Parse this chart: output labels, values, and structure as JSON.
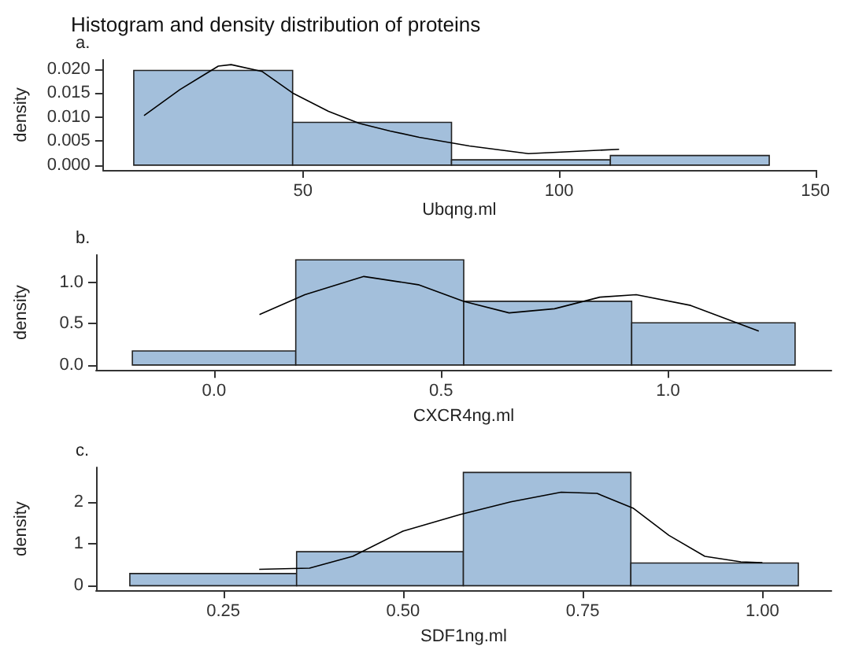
{
  "chart_data": [
    {
      "type": "histogram",
      "title": "Histogram and density distribution of proteins",
      "annotations": [
        "a."
      ],
      "xlabel": "Ubqng.ml",
      "ylabel": "density",
      "color": "#a3bfdb",
      "bins": [
        17,
        48,
        79,
        110,
        141
      ],
      "values": [
        0.0197,
        0.0089,
        0.0011,
        0.002
      ],
      "xlim": [
        11,
        150
      ],
      "ylim": [
        -0.001,
        0.0219
      ],
      "xticks": [
        50,
        100,
        150
      ],
      "yticks": [
        {
          "value": 0,
          "label": "0.000"
        },
        {
          "value": 0.005,
          "label": "0.005"
        },
        {
          "value": 0.01,
          "label": "0.010"
        },
        {
          "value": 0.015,
          "label": "0.015"
        },
        {
          "value": 0.02,
          "label": "0.020"
        }
      ],
      "grid": false,
      "series": [
        {
          "type": "line",
          "color": "#000000",
          "x": [
            19,
            26,
            33.5,
            36,
            42,
            48,
            55,
            61,
            67,
            72.7,
            82.5,
            94,
            102,
            111.7
          ],
          "values": [
            0.0103,
            0.0157,
            0.0206,
            0.0209,
            0.0195,
            0.015,
            0.0112,
            0.0087,
            0.0071,
            0.0058,
            0.004,
            0.0024,
            0.0028,
            0.0033
          ]
        }
      ]
    },
    {
      "type": "histogram",
      "annotations": [
        "b."
      ],
      "xlabel": "CXCR4ng.ml",
      "ylabel": "density",
      "color": "#a3bfdb",
      "bins": [
        -0.18,
        0.18,
        0.55,
        0.92,
        1.28
      ],
      "values": [
        0.17,
        1.27,
        0.77,
        0.51
      ],
      "xlim": [
        -0.26,
        1.36
      ],
      "ylim": [
        -0.06,
        1.33
      ],
      "xticks": [
        {
          "value": 0,
          "label": "0.0"
        },
        {
          "value": 0.5,
          "label": "0.5"
        },
        {
          "value": 1,
          "label": "1.0"
        }
      ],
      "yticks": [
        {
          "value": 0,
          "label": "0.0"
        },
        {
          "value": 0.5,
          "label": "0.5"
        },
        {
          "value": 1,
          "label": "1.0"
        }
      ],
      "grid": false,
      "series": [
        {
          "type": "line",
          "color": "#000000",
          "x": [
            0.1,
            0.2,
            0.33,
            0.45,
            0.55,
            0.65,
            0.75,
            0.85,
            0.93,
            1.05,
            1.2
          ],
          "values": [
            0.61,
            0.85,
            1.07,
            0.97,
            0.77,
            0.63,
            0.68,
            0.82,
            0.85,
            0.72,
            0.41
          ]
        }
      ]
    },
    {
      "type": "histogram",
      "annotations": [
        "c."
      ],
      "xlabel": "SDF1ng.ml",
      "ylabel": "density",
      "color": "#a3bfdb",
      "bins": [
        0.12,
        0.352,
        0.584,
        0.817,
        1.05
      ],
      "values": [
        0.29,
        0.81,
        2.7,
        0.54
      ],
      "xlim": [
        0.073,
        1.096
      ],
      "ylim": [
        -0.11,
        2.82
      ],
      "xticks": [
        {
          "value": 0.25,
          "label": "0.25"
        },
        {
          "value": 0.5,
          "label": "0.50"
        },
        {
          "value": 0.75,
          "label": "0.75"
        },
        {
          "value": 1,
          "label": "1.00"
        }
      ],
      "yticks": [
        0,
        1,
        2
      ],
      "grid": false,
      "series": [
        {
          "type": "line",
          "color": "#000000",
          "x": [
            0.3,
            0.37,
            0.43,
            0.5,
            0.58,
            0.65,
            0.72,
            0.77,
            0.82,
            0.87,
            0.92,
            0.97,
            1.0
          ],
          "values": [
            0.39,
            0.42,
            0.7,
            1.3,
            1.7,
            2.0,
            2.23,
            2.2,
            1.85,
            1.2,
            0.7,
            0.57,
            0.55
          ]
        }
      ]
    }
  ]
}
